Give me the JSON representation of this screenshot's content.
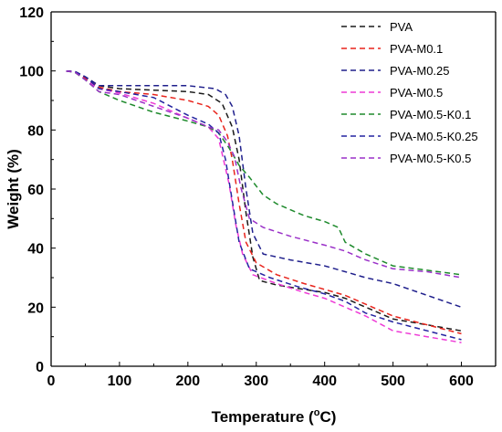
{
  "chart_data": {
    "type": "line",
    "xlabel": "Temperature (",
    "xlabel_sup": "o",
    "xlabel_end": "C)",
    "ylabel": "Weight (%)",
    "xlim": [
      0,
      650
    ],
    "ylim": [
      0,
      120
    ],
    "xticks": [
      0,
      100,
      200,
      300,
      400,
      500,
      600
    ],
    "yticks": [
      0,
      20,
      40,
      60,
      80,
      100,
      120
    ],
    "grid": false,
    "legend_position": "top-right",
    "series": [
      {
        "name": "PVA",
        "color": "#1a1a1a",
        "points": [
          [
            22,
            100
          ],
          [
            35,
            99.8
          ],
          [
            50,
            98
          ],
          [
            70,
            95
          ],
          [
            100,
            94
          ],
          [
            150,
            93.5
          ],
          [
            200,
            93
          ],
          [
            230,
            92
          ],
          [
            250,
            89
          ],
          [
            265,
            81
          ],
          [
            275,
            70
          ],
          [
            285,
            52
          ],
          [
            295,
            37
          ],
          [
            305,
            29
          ],
          [
            330,
            27.5
          ],
          [
            370,
            26
          ],
          [
            400,
            25
          ],
          [
            430,
            23
          ],
          [
            460,
            20
          ],
          [
            500,
            16
          ],
          [
            550,
            14
          ],
          [
            600,
            12
          ]
        ]
      },
      {
        "name": "PVA-M0.1",
        "color": "#e8241c",
        "points": [
          [
            22,
            100
          ],
          [
            35,
            99.7
          ],
          [
            50,
            97.5
          ],
          [
            70,
            94.5
          ],
          [
            100,
            93
          ],
          [
            150,
            92
          ],
          [
            200,
            90
          ],
          [
            230,
            88
          ],
          [
            245,
            85
          ],
          [
            258,
            78
          ],
          [
            265,
            70
          ],
          [
            275,
            55
          ],
          [
            285,
            42
          ],
          [
            300,
            35
          ],
          [
            330,
            31
          ],
          [
            370,
            28
          ],
          [
            400,
            26
          ],
          [
            430,
            24
          ],
          [
            460,
            21
          ],
          [
            500,
            17
          ],
          [
            550,
            14
          ],
          [
            600,
            11
          ]
        ]
      },
      {
        "name": "PVA-M0.25",
        "color": "#1f1f8c",
        "points": [
          [
            22,
            100
          ],
          [
            35,
            99.8
          ],
          [
            50,
            98
          ],
          [
            70,
            95
          ],
          [
            100,
            95
          ],
          [
            150,
            95
          ],
          [
            200,
            95
          ],
          [
            240,
            94
          ],
          [
            255,
            92
          ],
          [
            265,
            88
          ],
          [
            275,
            78
          ],
          [
            285,
            60
          ],
          [
            295,
            45
          ],
          [
            310,
            38
          ],
          [
            350,
            36
          ],
          [
            400,
            34
          ],
          [
            430,
            32
          ],
          [
            460,
            30
          ],
          [
            500,
            28
          ],
          [
            550,
            24
          ],
          [
            600,
            20
          ]
        ]
      },
      {
        "name": "PVA-M0.5",
        "color": "#ee3ad6",
        "points": [
          [
            22,
            100
          ],
          [
            35,
            99.5
          ],
          [
            50,
            97
          ],
          [
            70,
            94
          ],
          [
            100,
            92.5
          ],
          [
            150,
            89
          ],
          [
            200,
            84
          ],
          [
            230,
            81
          ],
          [
            245,
            77
          ],
          [
            260,
            62
          ],
          [
            270,
            48
          ],
          [
            280,
            38
          ],
          [
            295,
            31
          ],
          [
            330,
            28
          ],
          [
            370,
            25
          ],
          [
            400,
            23
          ],
          [
            430,
            20
          ],
          [
            460,
            17
          ],
          [
            500,
            12
          ],
          [
            550,
            10
          ],
          [
            600,
            8
          ]
        ]
      },
      {
        "name": "PVA-M0.5-K0.1",
        "color": "#1e8a2c",
        "points": [
          [
            22,
            100
          ],
          [
            35,
            99.5
          ],
          [
            50,
            97
          ],
          [
            70,
            93
          ],
          [
            100,
            90
          ],
          [
            150,
            86
          ],
          [
            200,
            83
          ],
          [
            230,
            81
          ],
          [
            245,
            79
          ],
          [
            260,
            74
          ],
          [
            275,
            68
          ],
          [
            290,
            64
          ],
          [
            310,
            58
          ],
          [
            330,
            55
          ],
          [
            370,
            51
          ],
          [
            400,
            49
          ],
          [
            420,
            47
          ],
          [
            430,
            42
          ],
          [
            460,
            38
          ],
          [
            500,
            34
          ],
          [
            550,
            32.5
          ],
          [
            600,
            31
          ]
        ]
      },
      {
        "name": "PVA-M0.5-K0.25",
        "color": "#2424a0",
        "points": [
          [
            22,
            100
          ],
          [
            35,
            99.7
          ],
          [
            50,
            98
          ],
          [
            70,
            94
          ],
          [
            100,
            93
          ],
          [
            150,
            91
          ],
          [
            200,
            85
          ],
          [
            230,
            82
          ],
          [
            245,
            79
          ],
          [
            255,
            70
          ],
          [
            265,
            56
          ],
          [
            275,
            42
          ],
          [
            290,
            33
          ],
          [
            320,
            30
          ],
          [
            360,
            27
          ],
          [
            400,
            24.5
          ],
          [
            430,
            22
          ],
          [
            460,
            18
          ],
          [
            500,
            15
          ],
          [
            550,
            12
          ],
          [
            600,
            9
          ]
        ]
      },
      {
        "name": "PVA-M0.5-K0.5",
        "color": "#9a30c8",
        "points": [
          [
            22,
            100
          ],
          [
            35,
            99.6
          ],
          [
            50,
            97
          ],
          [
            70,
            93
          ],
          [
            100,
            92
          ],
          [
            150,
            88
          ],
          [
            200,
            84
          ],
          [
            230,
            81
          ],
          [
            245,
            80
          ],
          [
            258,
            76
          ],
          [
            268,
            71
          ],
          [
            278,
            60
          ],
          [
            290,
            50
          ],
          [
            310,
            47
          ],
          [
            350,
            44
          ],
          [
            400,
            41
          ],
          [
            430,
            39
          ],
          [
            460,
            36
          ],
          [
            500,
            33
          ],
          [
            550,
            32
          ],
          [
            600,
            30
          ]
        ]
      }
    ]
  }
}
